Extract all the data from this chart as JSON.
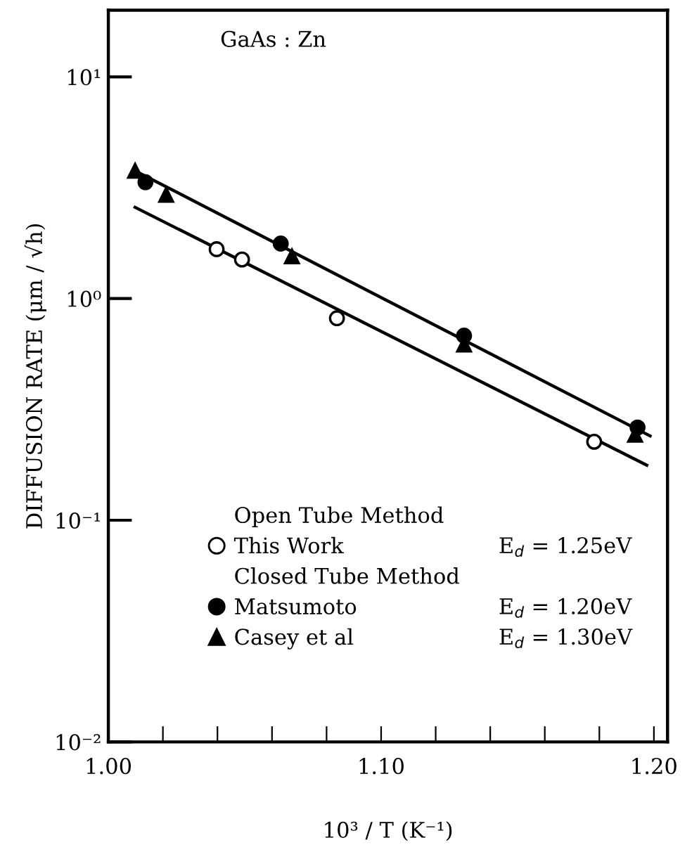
{
  "chart_data": {
    "type": "scatter",
    "log": "y",
    "xlabel": "10³ / T (K⁻¹)",
    "ylabel": "DIFFUSION RATE (μm / √h)",
    "xlim": [
      1.0,
      1.205
    ],
    "ylim": [
      0.01,
      20
    ],
    "xticks": [
      {
        "value": 1.0,
        "label": "1.00"
      },
      {
        "value": 1.02,
        "label": null
      },
      {
        "value": 1.04,
        "label": null
      },
      {
        "value": 1.06,
        "label": null
      },
      {
        "value": 1.08,
        "label": null
      },
      {
        "value": 1.1,
        "label": "1.10"
      },
      {
        "value": 1.12,
        "label": null
      },
      {
        "value": 1.14,
        "label": null
      },
      {
        "value": 1.16,
        "label": null
      },
      {
        "value": 1.18,
        "label": null
      },
      {
        "value": 1.2,
        "label": "1.20"
      }
    ],
    "yticks": [
      {
        "value": 0.01,
        "label": "10⁻²"
      },
      {
        "value": 0.1,
        "label": "10⁻¹"
      },
      {
        "value": 1,
        "label": "10⁰"
      },
      {
        "value": 10,
        "label": "10¹"
      }
    ],
    "annotations": [
      "GaAs : Zn",
      "Open Tube Method",
      "Closed Tube Method",
      "E$_{d}$ = 1.25eV",
      "E$_{d}$ = 1.20eV",
      "E$_{d}$ = 1.30eV"
    ],
    "legend": "bottom",
    "grid": false,
    "series": [
      {
        "name": "This Work",
        "marker": "circle",
        "color": "#ffffff",
        "x": [
          1.0397,
          1.049,
          1.0838,
          1.1781
        ],
        "values": [
          1.67,
          1.5,
          0.815,
          0.226
        ]
      },
      {
        "name": "Matsumoto",
        "marker": "circle",
        "color": "#000000",
        "x": [
          1.0136,
          1.0632,
          1.1304,
          1.194
        ],
        "values": [
          3.35,
          1.77,
          0.68,
          0.262
        ]
      },
      {
        "name": "Casey et al",
        "marker": "triangle",
        "color": "#000000",
        "x": [
          1.0098,
          1.0212,
          1.0673,
          1.1304,
          1.1931
        ],
        "values": [
          3.77,
          2.94,
          1.55,
          0.62,
          0.243
        ]
      },
      {
        "type": "line",
        "color": "#000000",
        "line_style": "solid",
        "x": [
          1.0098,
          1.1986
        ],
        "values": [
          3.77,
          0.24
        ]
      },
      {
        "type": "line",
        "color": "#000000",
        "line_style": "solid",
        "x": [
          1.0098,
          1.1974
        ],
        "values": [
          2.58,
          0.177
        ]
      }
    ]
  }
}
